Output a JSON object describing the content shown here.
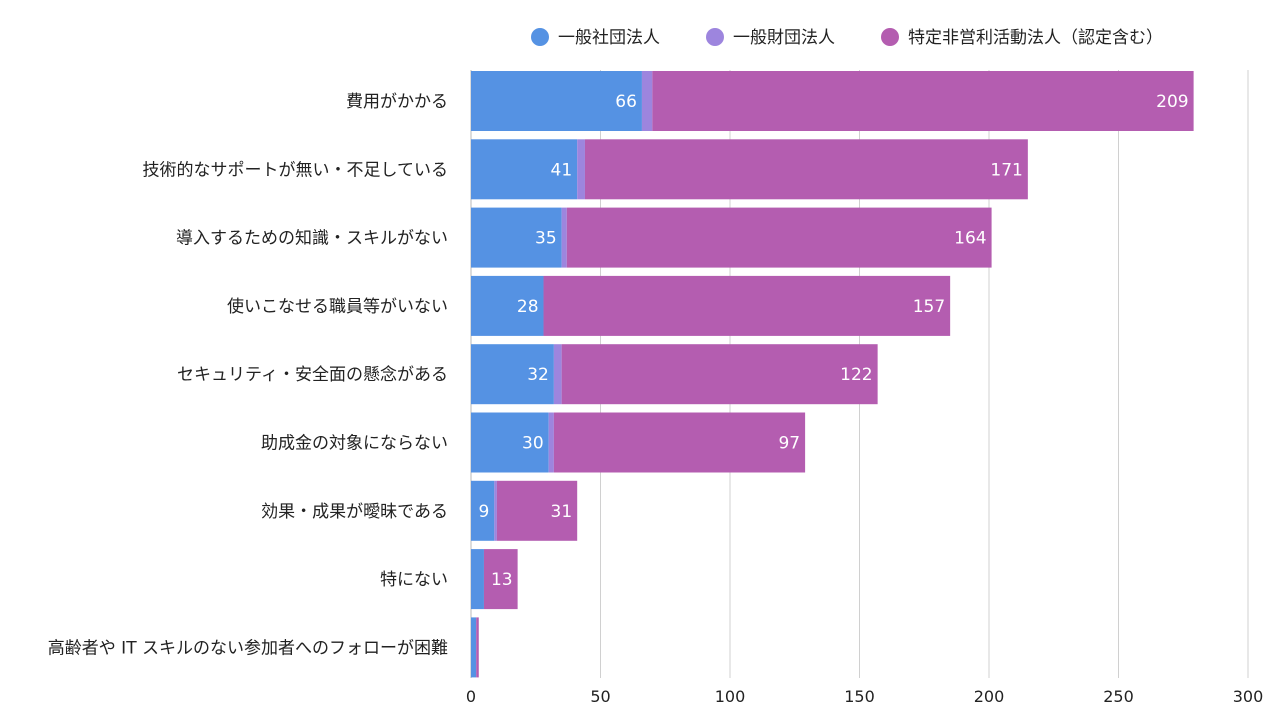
{
  "chart_data": {
    "type": "bar",
    "orientation": "horizontal",
    "stacked": true,
    "categories": [
      "費用がかかる",
      "技術的なサポートが無い・不足している",
      "導入するための知識・スキルがない",
      "使いこなせる職員等がいない",
      "セキュリティ・安全面の懸念がある",
      "助成金の対象にならない",
      "効果・成果が曖昧である",
      "特にない",
      "高齢者や IT スキルのない参加者へのフォローが困難"
    ],
    "series": [
      {
        "name": "一般社団法人",
        "color": "#5592e3",
        "values": [
          66,
          41,
          35,
          28,
          32,
          30,
          9,
          5,
          2
        ],
        "labels": [
          "66",
          "41",
          "35",
          "28",
          "32",
          "30",
          "9",
          "",
          ""
        ]
      },
      {
        "name": "一般財団法人",
        "color": "#9d85de",
        "values": [
          4,
          3,
          2,
          0,
          3,
          2,
          1,
          0,
          0
        ],
        "labels": [
          "",
          "",
          "",
          "",
          "",
          "",
          "",
          "",
          ""
        ]
      },
      {
        "name": "特定非営利活動法人（認定含む）",
        "color": "#b45db0",
        "values": [
          209,
          171,
          164,
          157,
          122,
          97,
          31,
          13,
          1
        ],
        "labels": [
          "209",
          "171",
          "164",
          "157",
          "122",
          "97",
          "31",
          "13",
          ""
        ]
      }
    ],
    "xlim": [
      0,
      300
    ],
    "xticks": [
      "0",
      "50",
      "100",
      "150",
      "200",
      "250",
      "300"
    ],
    "grid": true,
    "legend_position": "top"
  }
}
